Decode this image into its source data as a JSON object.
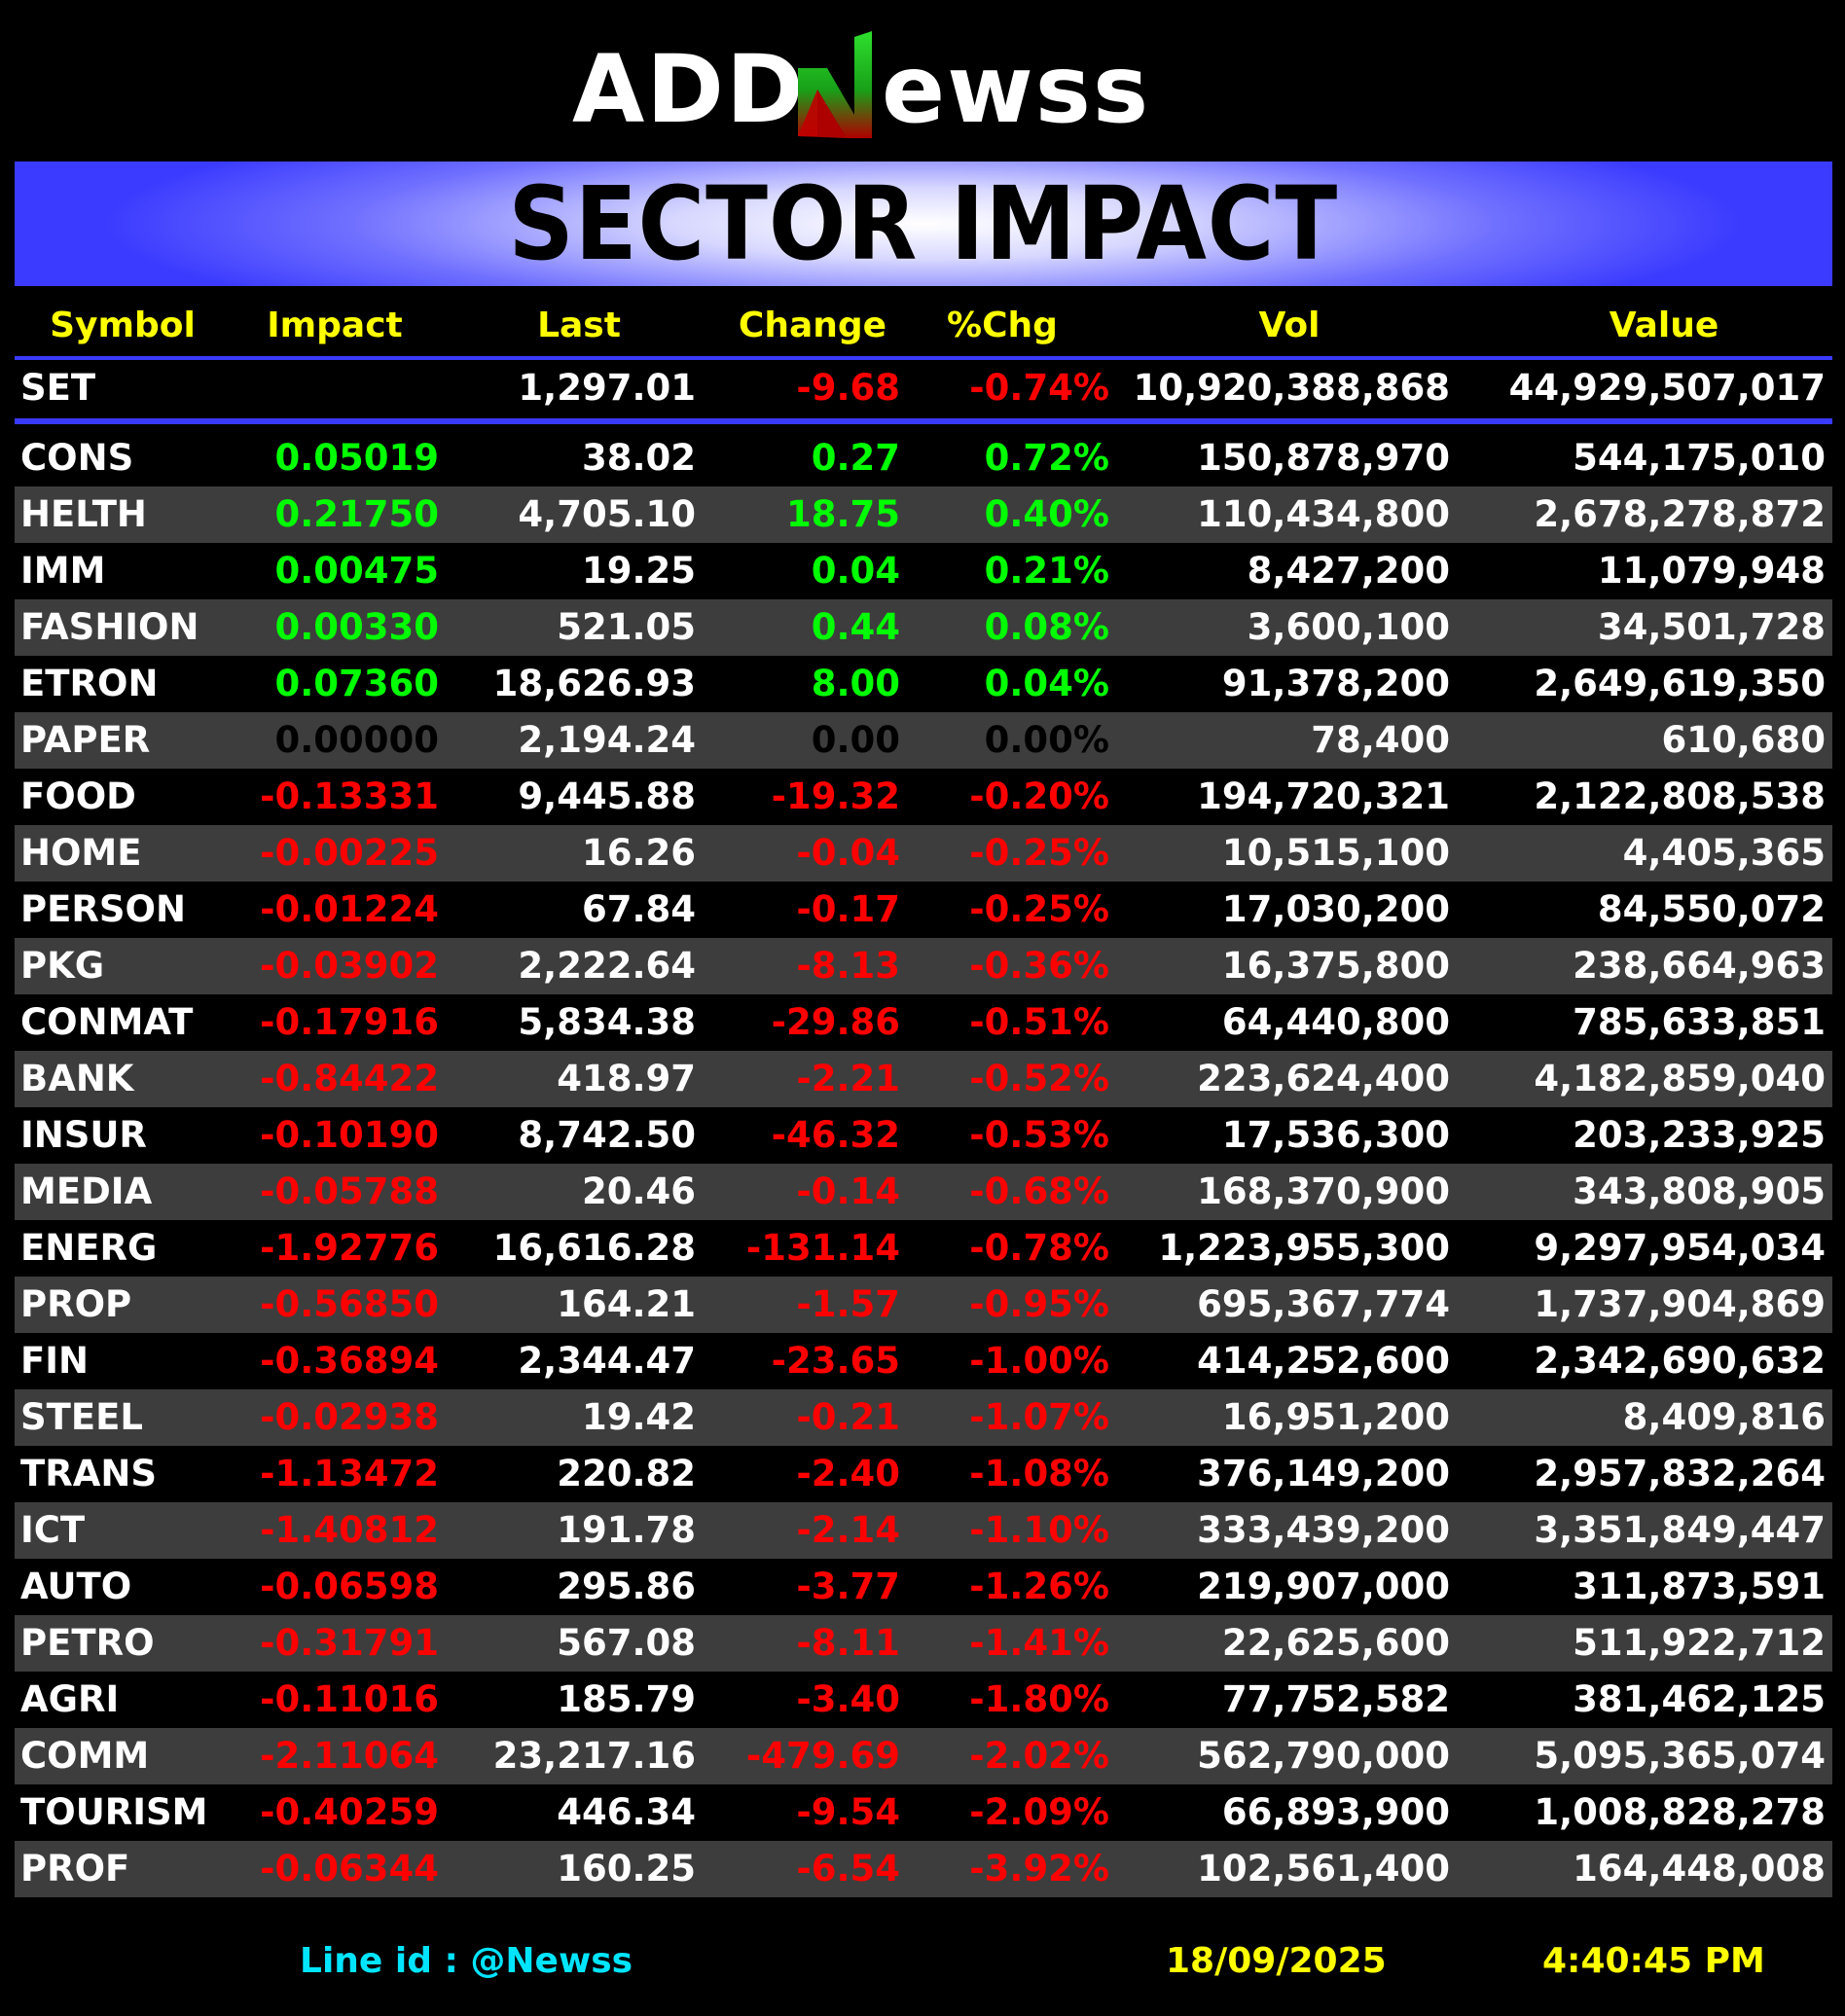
{
  "logo": {
    "text": "ADDNewss",
    "colors": {
      "main": "#ffffff",
      "n_green": "#22cc22",
      "n_red": "#cc0000"
    }
  },
  "banner": {
    "title": "SECTOR IMPACT"
  },
  "columns": [
    "Symbol",
    "Impact",
    "Last",
    "Change",
    "%Chg",
    "Vol",
    "Value"
  ],
  "index_row": {
    "symbol": "SET",
    "impact": "",
    "last": "1,297.01",
    "change": "-9.68",
    "pct": "-0.74%",
    "vol": "10,920,388,868",
    "value": "44,929,507,017",
    "trend": "neg"
  },
  "rows": [
    {
      "symbol": "CONS",
      "impact": "0.05019",
      "last": "38.02",
      "change": "0.27",
      "pct": "0.72%",
      "vol": "150,878,970",
      "value": "544,175,010",
      "trend": "pos"
    },
    {
      "symbol": "HELTH",
      "impact": "0.21750",
      "last": "4,705.10",
      "change": "18.75",
      "pct": "0.40%",
      "vol": "110,434,800",
      "value": "2,678,278,872",
      "trend": "pos"
    },
    {
      "symbol": "IMM",
      "impact": "0.00475",
      "last": "19.25",
      "change": "0.04",
      "pct": "0.21%",
      "vol": "8,427,200",
      "value": "11,079,948",
      "trend": "pos"
    },
    {
      "symbol": "FASHION",
      "impact": "0.00330",
      "last": "521.05",
      "change": "0.44",
      "pct": "0.08%",
      "vol": "3,600,100",
      "value": "34,501,728",
      "trend": "pos"
    },
    {
      "symbol": "ETRON",
      "impact": "0.07360",
      "last": "18,626.93",
      "change": "8.00",
      "pct": "0.04%",
      "vol": "91,378,200",
      "value": "2,649,619,350",
      "trend": "pos"
    },
    {
      "symbol": "PAPER",
      "impact": "0.00000",
      "last": "2,194.24",
      "change": "0.00",
      "pct": "0.00%",
      "vol": "78,400",
      "value": "610,680",
      "trend": "zero"
    },
    {
      "symbol": "FOOD",
      "impact": "-0.13331",
      "last": "9,445.88",
      "change": "-19.32",
      "pct": "-0.20%",
      "vol": "194,720,321",
      "value": "2,122,808,538",
      "trend": "neg"
    },
    {
      "symbol": "HOME",
      "impact": "-0.00225",
      "last": "16.26",
      "change": "-0.04",
      "pct": "-0.25%",
      "vol": "10,515,100",
      "value": "4,405,365",
      "trend": "neg"
    },
    {
      "symbol": "PERSON",
      "impact": "-0.01224",
      "last": "67.84",
      "change": "-0.17",
      "pct": "-0.25%",
      "vol": "17,030,200",
      "value": "84,550,072",
      "trend": "neg"
    },
    {
      "symbol": "PKG",
      "impact": "-0.03902",
      "last": "2,222.64",
      "change": "-8.13",
      "pct": "-0.36%",
      "vol": "16,375,800",
      "value": "238,664,963",
      "trend": "neg"
    },
    {
      "symbol": "CONMAT",
      "impact": "-0.17916",
      "last": "5,834.38",
      "change": "-29.86",
      "pct": "-0.51%",
      "vol": "64,440,800",
      "value": "785,633,851",
      "trend": "neg"
    },
    {
      "symbol": "BANK",
      "impact": "-0.84422",
      "last": "418.97",
      "change": "-2.21",
      "pct": "-0.52%",
      "vol": "223,624,400",
      "value": "4,182,859,040",
      "trend": "neg"
    },
    {
      "symbol": "INSUR",
      "impact": "-0.10190",
      "last": "8,742.50",
      "change": "-46.32",
      "pct": "-0.53%",
      "vol": "17,536,300",
      "value": "203,233,925",
      "trend": "neg"
    },
    {
      "symbol": "MEDIA",
      "impact": "-0.05788",
      "last": "20.46",
      "change": "-0.14",
      "pct": "-0.68%",
      "vol": "168,370,900",
      "value": "343,808,905",
      "trend": "neg"
    },
    {
      "symbol": "ENERG",
      "impact": "-1.92776",
      "last": "16,616.28",
      "change": "-131.14",
      "pct": "-0.78%",
      "vol": "1,223,955,300",
      "value": "9,297,954,034",
      "trend": "neg"
    },
    {
      "symbol": "PROP",
      "impact": "-0.56850",
      "last": "164.21",
      "change": "-1.57",
      "pct": "-0.95%",
      "vol": "695,367,774",
      "value": "1,737,904,869",
      "trend": "neg"
    },
    {
      "symbol": "FIN",
      "impact": "-0.36894",
      "last": "2,344.47",
      "change": "-23.65",
      "pct": "-1.00%",
      "vol": "414,252,600",
      "value": "2,342,690,632",
      "trend": "neg"
    },
    {
      "symbol": "STEEL",
      "impact": "-0.02938",
      "last": "19.42",
      "change": "-0.21",
      "pct": "-1.07%",
      "vol": "16,951,200",
      "value": "8,409,816",
      "trend": "neg"
    },
    {
      "symbol": "TRANS",
      "impact": "-1.13472",
      "last": "220.82",
      "change": "-2.40",
      "pct": "-1.08%",
      "vol": "376,149,200",
      "value": "2,957,832,264",
      "trend": "neg"
    },
    {
      "symbol": "ICT",
      "impact": "-1.40812",
      "last": "191.78",
      "change": "-2.14",
      "pct": "-1.10%",
      "vol": "333,439,200",
      "value": "3,351,849,447",
      "trend": "neg"
    },
    {
      "symbol": "AUTO",
      "impact": "-0.06598",
      "last": "295.86",
      "change": "-3.77",
      "pct": "-1.26%",
      "vol": "219,907,000",
      "value": "311,873,591",
      "trend": "neg"
    },
    {
      "symbol": "PETRO",
      "impact": "-0.31791",
      "last": "567.08",
      "change": "-8.11",
      "pct": "-1.41%",
      "vol": "22,625,600",
      "value": "511,922,712",
      "trend": "neg"
    },
    {
      "symbol": "AGRI",
      "impact": "-0.11016",
      "last": "185.79",
      "change": "-3.40",
      "pct": "-1.80%",
      "vol": "77,752,582",
      "value": "381,462,125",
      "trend": "neg"
    },
    {
      "symbol": "COMM",
      "impact": "-2.11064",
      "last": "23,217.16",
      "change": "-479.69",
      "pct": "-2.02%",
      "vol": "562,790,000",
      "value": "5,095,365,074",
      "trend": "neg"
    },
    {
      "symbol": "TOURISM",
      "impact": "-0.40259",
      "last": "446.34",
      "change": "-9.54",
      "pct": "-2.09%",
      "vol": "66,893,900",
      "value": "1,008,828,278",
      "trend": "neg"
    },
    {
      "symbol": "PROF",
      "impact": "-0.06344",
      "last": "160.25",
      "change": "-6.54",
      "pct": "-3.92%",
      "vol": "102,561,400",
      "value": "164,448,008",
      "trend": "neg"
    }
  ],
  "footer": {
    "line_id": "Line id  : @Newss",
    "date": "18/09/2025",
    "time": "4:40:45 PM"
  },
  "colors": {
    "positive": "#00ff00",
    "negative": "#ff0000",
    "header_text": "#ffff00",
    "accent_blue": "#3a3aff",
    "line_id": "#00e5ff"
  }
}
